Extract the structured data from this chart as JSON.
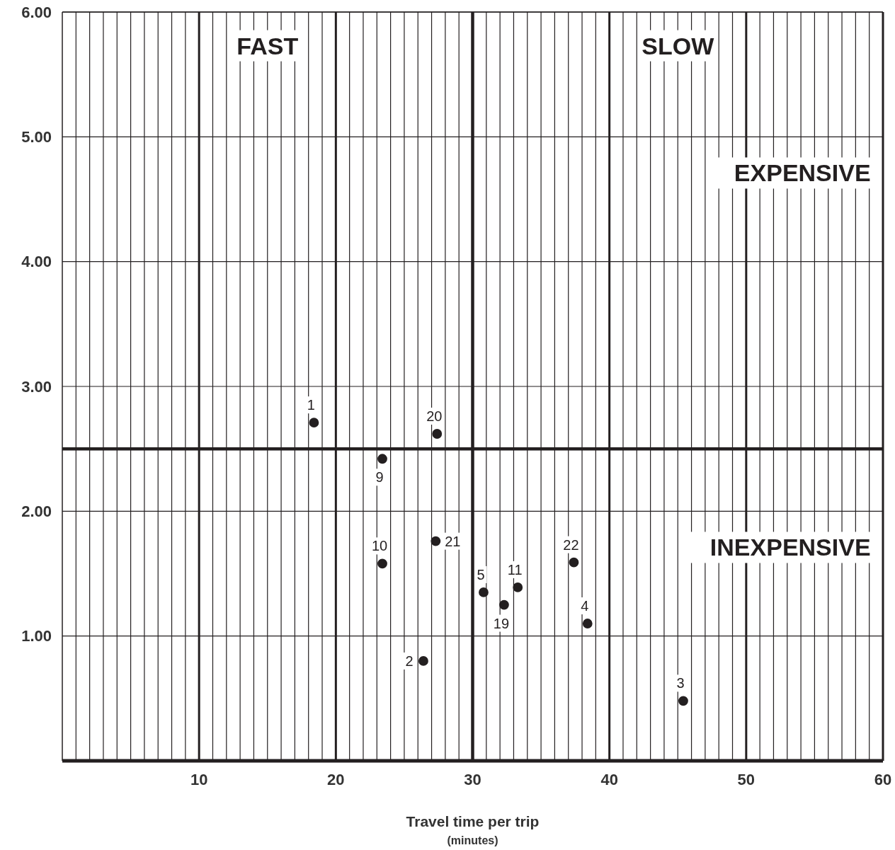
{
  "chart_data": {
    "type": "scatter",
    "xlabel": "Travel time per trip",
    "subtitle": "(minutes)",
    "xlim": [
      0,
      60
    ],
    "ylim": [
      0,
      6
    ],
    "xticks": [
      {
        "value": 1,
        "label": null
      },
      {
        "value": 2,
        "label": null
      },
      {
        "value": 3,
        "label": null
      },
      {
        "value": 4,
        "label": null
      },
      {
        "value": 5,
        "label": null
      },
      {
        "value": 6,
        "label": null
      },
      {
        "value": 7,
        "label": null
      },
      {
        "value": 8,
        "label": null
      },
      {
        "value": 9,
        "label": null
      },
      10,
      {
        "value": 11,
        "label": null
      },
      {
        "value": 12,
        "label": null
      },
      {
        "value": 13,
        "label": null
      },
      {
        "value": 14,
        "label": null
      },
      {
        "value": 15,
        "label": null
      },
      {
        "value": 16,
        "label": null
      },
      {
        "value": 17,
        "label": null
      },
      {
        "value": 18,
        "label": null
      },
      {
        "value": 19,
        "label": null
      },
      20,
      {
        "value": 21,
        "label": null
      },
      {
        "value": 22,
        "label": null
      },
      {
        "value": 23,
        "label": null
      },
      {
        "value": 24,
        "label": null
      },
      {
        "value": 25,
        "label": null
      },
      {
        "value": 26,
        "label": null
      },
      {
        "value": 27,
        "label": null
      },
      {
        "value": 28,
        "label": null
      },
      {
        "value": 29,
        "label": null
      },
      30,
      {
        "value": 31,
        "label": null
      },
      {
        "value": 32,
        "label": null
      },
      {
        "value": 33,
        "label": null
      },
      {
        "value": 34,
        "label": null
      },
      {
        "value": 35,
        "label": null
      },
      {
        "value": 36,
        "label": null
      },
      {
        "value": 37,
        "label": null
      },
      {
        "value": 38,
        "label": null
      },
      {
        "value": 39,
        "label": null
      },
      40,
      {
        "value": 41,
        "label": null
      },
      {
        "value": 42,
        "label": null
      },
      {
        "value": 43,
        "label": null
      },
      {
        "value": 44,
        "label": null
      },
      {
        "value": 45,
        "label": null
      },
      {
        "value": 46,
        "label": null
      },
      {
        "value": 47,
        "label": null
      },
      {
        "value": 48,
        "label": null
      },
      {
        "value": 49,
        "label": null
      },
      50,
      {
        "value": 51,
        "label": null
      },
      {
        "value": 52,
        "label": null
      },
      {
        "value": 53,
        "label": null
      },
      {
        "value": 54,
        "label": null
      },
      {
        "value": 55,
        "label": null
      },
      {
        "value": 56,
        "label": null
      },
      {
        "value": 57,
        "label": null
      },
      {
        "value": 58,
        "label": null
      },
      {
        "value": 59,
        "label": null
      },
      60
    ],
    "yticks": [
      {
        "value": 1,
        "label": "1.00"
      },
      {
        "value": 2,
        "label": "2.00"
      },
      {
        "value": 3,
        "label": "3.00"
      },
      {
        "value": 4,
        "label": "4.00"
      },
      {
        "value": 5,
        "label": "5.00"
      },
      {
        "value": 6,
        "label": "6.00"
      }
    ],
    "grid": true,
    "marker": "circle",
    "series": [
      {
        "color": "#231f20",
        "x": [
          18.4,
          27.4,
          23.4,
          23.4,
          27.3,
          30.8,
          32.3,
          33.3,
          37.4,
          38.4,
          26.4,
          45.4
        ],
        "values": [
          2.71,
          2.62,
          2.42,
          1.58,
          1.76,
          1.35,
          1.25,
          1.39,
          1.59,
          1.1,
          0.8,
          0.48
        ]
      }
    ],
    "ref_lines": [
      {
        "axis": "x",
        "value": 30
      },
      {
        "axis": "y",
        "value": 2.5
      }
    ],
    "annotations": [
      "FAST",
      "SLOW",
      "EXPENSIVE",
      "INEXPENSIVE",
      {
        "text": "1",
        "x": 18.4,
        "y": 2.71
      },
      {
        "text": "20",
        "x": 27.4,
        "y": 2.62
      },
      {
        "text": "9",
        "x": 23.4,
        "y": 2.42
      },
      {
        "text": "10",
        "x": 23.4,
        "y": 1.58
      },
      {
        "text": "21",
        "x": 27.3,
        "y": 1.76
      },
      {
        "text": "5",
        "x": 30.8,
        "y": 1.35
      },
      {
        "text": "11",
        "x": 33.3,
        "y": 1.39
      },
      {
        "text": "19",
        "x": 32.3,
        "y": 1.25
      },
      {
        "text": "22",
        "x": 37.4,
        "y": 1.59
      },
      {
        "text": "4",
        "x": 38.4,
        "y": 1.1
      },
      {
        "text": "2",
        "x": 26.4,
        "y": 0.8
      },
      {
        "text": "3",
        "x": 45.4,
        "y": 0.48
      }
    ]
  }
}
